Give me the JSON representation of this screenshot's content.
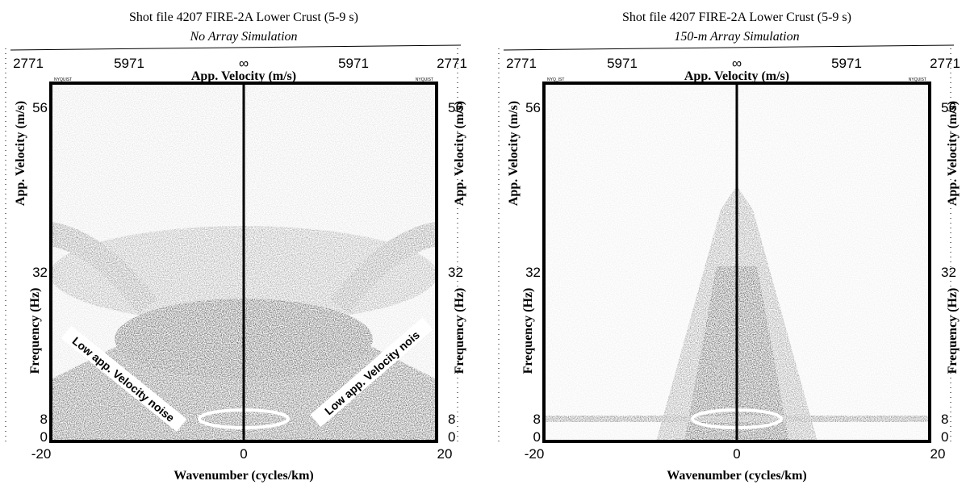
{
  "panels": [
    {
      "title": "Shot file 4207 FIRE-2A Lower Crust (5-9 s)",
      "subtitle": "No Array Simulation",
      "top_ticks": [
        "2771",
        "5971",
        "∞",
        "5971",
        "2771"
      ],
      "top_axis_label": "App. Velocity (m/s)",
      "nyquist_labels": [
        "NYQUIST",
        "NYQUIST"
      ],
      "left_ticks": [
        "56",
        "32",
        "8",
        "0"
      ],
      "right_ticks": [
        "56",
        "32",
        "8",
        "0"
      ],
      "side_axis_labels": [
        "App. Velocity (m/s)",
        "Frequency (Hz)"
      ],
      "bottom_ticks": [
        "-20",
        "0",
        "20"
      ],
      "x_axis_label": "Wavenumber (cycles/km)",
      "annotations": [
        "Low app. Velocity noise",
        "Low app. Velocity nois"
      ]
    },
    {
      "title": "Shot file 4207 FIRE-2A Lower Crust (5-9 s)",
      "subtitle": "150-m Array Simulation",
      "top_ticks": [
        "2771",
        "5971",
        "∞",
        "5971",
        "2771"
      ],
      "top_axis_label": "App. Velocity (m/s)",
      "nyquist_labels": [
        "NYQ_IST",
        "NYQUIST"
      ],
      "left_ticks": [
        "56",
        "32",
        "8",
        "0"
      ],
      "right_ticks": [
        "56",
        "32",
        "8",
        "0"
      ],
      "side_axis_labels": [
        "App. Velocity (m/s)",
        "Frequency (Hz)"
      ],
      "bottom_ticks": [
        "-20",
        "0",
        "20"
      ],
      "x_axis_label": "Wavenumber (cycles/km)",
      "annotations": []
    }
  ]
}
